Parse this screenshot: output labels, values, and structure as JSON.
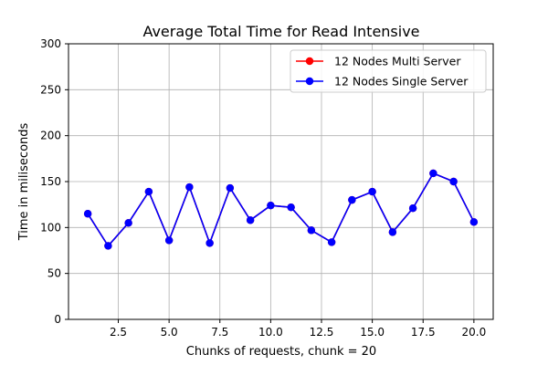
{
  "chart_data": {
    "type": "line",
    "title": "Average Total Time for Read Intensive",
    "xlabel": "Chunks of requests, chunk = 20",
    "ylabel": "Time in miliseconds",
    "xlim": [
      0.05,
      20.95
    ],
    "ylim": [
      0,
      300
    ],
    "xticks": [
      2.5,
      5.0,
      7.5,
      10.0,
      12.5,
      15.0,
      17.5,
      20.0
    ],
    "xtick_labels": [
      "2.5",
      "5.0",
      "7.5",
      "10.0",
      "12.5",
      "15.0",
      "17.5",
      "20.0"
    ],
    "yticks": [
      0,
      50,
      100,
      150,
      200,
      250,
      300
    ],
    "ytick_labels": [
      "0",
      "50",
      "100",
      "150",
      "200",
      "250",
      "300"
    ],
    "grid": true,
    "legend_position": "top-right",
    "series": [
      {
        "name": "12 Nodes Multi Server",
        "color": "#ff0000",
        "x": [
          1,
          2,
          3,
          4,
          5,
          6,
          7,
          8,
          9,
          10,
          11,
          12,
          13,
          14,
          15,
          16,
          17,
          18,
          19,
          20
        ],
        "values": [
          115,
          80,
          105,
          139,
          86,
          144,
          83,
          143,
          108,
          124,
          122,
          97,
          84,
          130,
          139,
          95,
          121,
          159,
          150,
          106
        ]
      },
      {
        "name": "12 Nodes Single Server",
        "color": "#0000ff",
        "x": [
          1,
          2,
          3,
          4,
          5,
          6,
          7,
          8,
          9,
          10,
          11,
          12,
          13,
          14,
          15,
          16,
          17,
          18,
          19,
          20
        ],
        "values": [
          115,
          80,
          105,
          139,
          86,
          144,
          83,
          143,
          108,
          124,
          122,
          97,
          84,
          130,
          139,
          95,
          121,
          159,
          150,
          106
        ]
      }
    ]
  }
}
